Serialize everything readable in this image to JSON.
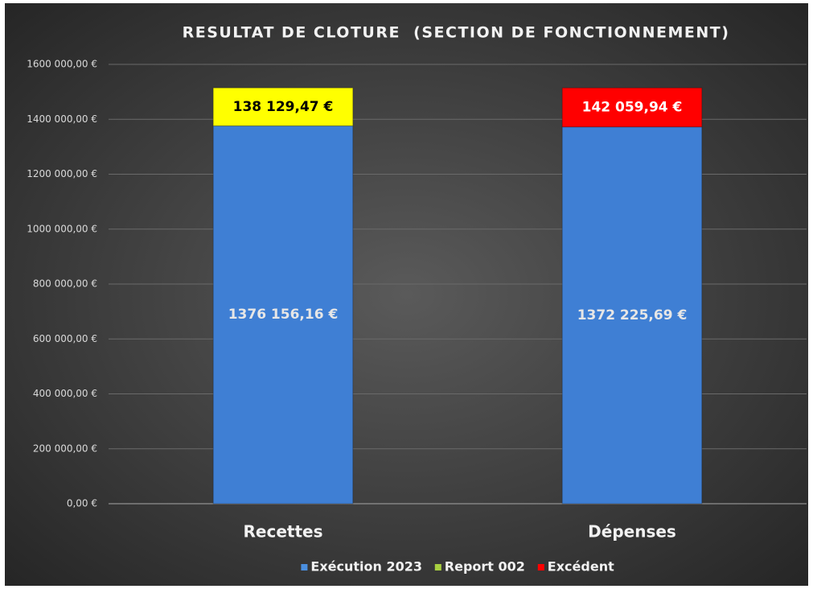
{
  "chart_data": {
    "type": "stacked_bar",
    "title": "RESULTAT DE CLOTURE  (SECTION DE FONCTIONNEMENT)",
    "categories": [
      "Recettes",
      "Dépenses"
    ],
    "series": [
      {
        "name": "Exécution 2023",
        "color": "#3f7fd4",
        "legend_color": "#4a8fe0",
        "label_color": "#e6e6e6",
        "values": [
          1376156.16,
          1372225.69
        ],
        "value_labels": [
          "1376 156,16 €",
          "1372 225,69 €"
        ]
      },
      {
        "name": "Report 002",
        "color": "#ffff00",
        "legend_color": "#a8d040",
        "label_color": "#000000",
        "values": [
          138129.47,
          null
        ],
        "value_labels": [
          "138 129,47 €",
          null
        ]
      },
      {
        "name": "Excédent",
        "color": "#ff0000",
        "legend_color": "#ff0000",
        "label_color": "#ffffff",
        "values": [
          null,
          142059.94
        ],
        "value_labels": [
          null,
          "142 059,94 €"
        ]
      }
    ],
    "ylim": [
      0,
      1600000
    ],
    "yticks": [
      {
        "value": 0,
        "label": "0,00 €"
      },
      {
        "value": 200000,
        "label": "200 000,00 €"
      },
      {
        "value": 400000,
        "label": "400 000,00 €"
      },
      {
        "value": 600000,
        "label": "600 000,00 €"
      },
      {
        "value": 800000,
        "label": "800 000,00 €"
      },
      {
        "value": 1000000,
        "label": "1000 000,00 €"
      },
      {
        "value": 1200000,
        "label": "1200 000,00 €"
      },
      {
        "value": 1400000,
        "label": "1400 000,00 €"
      },
      {
        "value": 1600000,
        "label": "1600 000,00 €"
      }
    ],
    "grid": true,
    "legend": "bottom"
  }
}
